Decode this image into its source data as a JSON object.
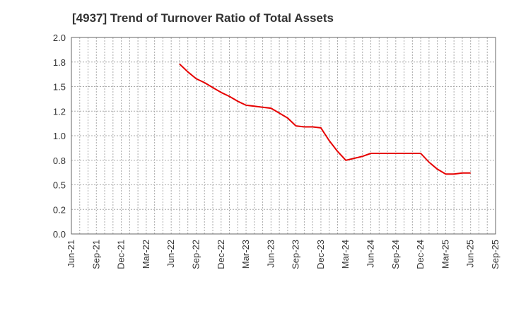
{
  "chart_data": {
    "type": "line",
    "title": "[4937]  Trend of Turnover Ratio of Total Assets",
    "xlabel": "",
    "ylabel": "",
    "ylim": [
      0.0,
      2.0
    ],
    "yticks": [
      "0.0",
      "0.2",
      "0.5",
      "0.8",
      "1.0",
      "1.2",
      "1.5",
      "1.8",
      "2.0"
    ],
    "xticks": [
      "Jun-21",
      "Sep-21",
      "Dec-21",
      "Mar-22",
      "Jun-22",
      "Sep-22",
      "Dec-22",
      "Mar-23",
      "Jun-23",
      "Sep-23",
      "Dec-23",
      "Mar-24",
      "Jun-24",
      "Sep-24",
      "Dec-24",
      "Mar-25",
      "Jun-25",
      "Sep-25"
    ],
    "grid": true,
    "legend": "none",
    "series": [
      {
        "color": "#e60000",
        "x": [
          "Jul-22",
          "Aug-22",
          "Sep-22",
          "Oct-22",
          "Nov-22",
          "Dec-22",
          "Jan-23",
          "Feb-23",
          "Mar-23",
          "Apr-23",
          "May-23",
          "Jun-23",
          "Jul-23",
          "Aug-23",
          "Sep-23",
          "Oct-23",
          "Nov-23",
          "Dec-23",
          "Jan-24",
          "Feb-24",
          "Mar-24",
          "Apr-24",
          "May-24",
          "Jun-24",
          "Jul-24",
          "Aug-24",
          "Sep-24",
          "Oct-24",
          "Nov-24",
          "Dec-24",
          "Jan-25",
          "Feb-25",
          "Mar-25",
          "Apr-25",
          "May-25",
          "Jun-25"
        ],
        "values": [
          1.73,
          1.65,
          1.58,
          1.54,
          1.49,
          1.44,
          1.4,
          1.35,
          1.31,
          1.3,
          1.29,
          1.28,
          1.23,
          1.18,
          1.1,
          1.09,
          1.09,
          1.08,
          0.95,
          0.84,
          0.75,
          0.77,
          0.79,
          0.82,
          0.82,
          0.82,
          0.82,
          0.82,
          0.82,
          0.82,
          0.73,
          0.66,
          0.61,
          0.61,
          0.62,
          0.62
        ]
      }
    ]
  }
}
